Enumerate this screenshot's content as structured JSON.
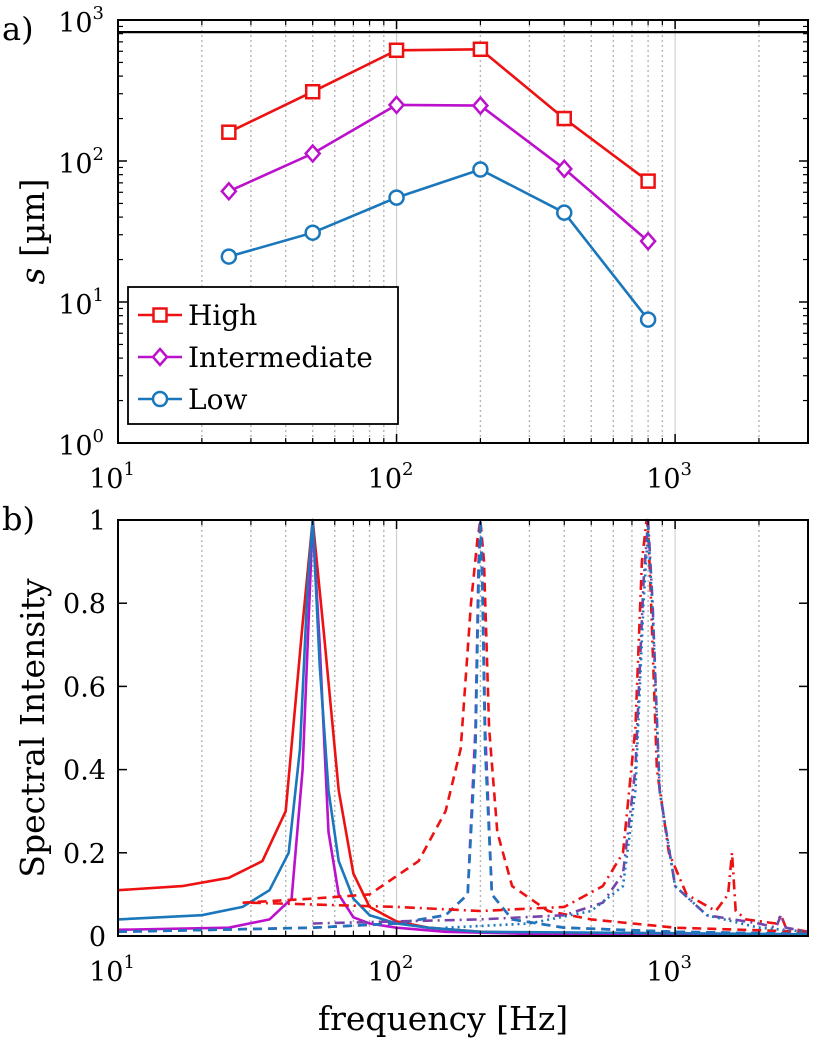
{
  "chart_data": [
    {
      "panel_label": "a)",
      "type": "line",
      "x_scale": "log",
      "y_scale": "log",
      "xlim": [
        10,
        3000
      ],
      "ylim": [
        1,
        1000
      ],
      "ylabel_symbol": "s",
      "ylabel_unit": " [µm]",
      "xticks": [
        10,
        100,
        1000
      ],
      "yticks": [
        1,
        10,
        100,
        1000
      ],
      "grid": "vertical dotted minor lines",
      "reference_line_y": 820,
      "legend_position": "lower-left",
      "series": [
        {
          "name": "High",
          "color": "#ee1111",
          "marker": "square",
          "x": [
            25,
            50,
            100,
            200,
            400,
            800
          ],
          "y": [
            160,
            310,
            610,
            620,
            200,
            72
          ]
        },
        {
          "name": "Intermediate",
          "color": "#bb11cc",
          "marker": "diamond",
          "x": [
            25,
            50,
            100,
            200,
            400,
            800
          ],
          "y": [
            61,
            113,
            250,
            247,
            88,
            27
          ]
        },
        {
          "name": "Low",
          "color": "#1a77bb",
          "marker": "circle",
          "x": [
            25,
            50,
            100,
            200,
            400,
            800
          ],
          "y": [
            21,
            31,
            55,
            87,
            43,
            7.5
          ]
        }
      ]
    },
    {
      "panel_label": "b)",
      "type": "line",
      "x_scale": "log",
      "xlim": [
        10,
        3000
      ],
      "ylim": [
        0,
        1
      ],
      "xlabel": "frequency [Hz]",
      "ylabel": "Spectral Intensity",
      "yticks": [
        0,
        0.2,
        0.4,
        0.6,
        0.8,
        1
      ],
      "ytick_labels": [
        "0",
        "0.2",
        "0.4",
        "0.6",
        "0.8",
        "1"
      ],
      "xticks": [
        10,
        100,
        1000
      ],
      "grid": "vertical dotted minor lines",
      "series": [
        {
          "color": "#ee1111",
          "dash": "solid",
          "x": [
            10,
            17,
            25,
            33,
            40,
            46,
            50,
            55,
            62,
            70,
            80,
            100,
            130,
            200,
            400,
            800,
            3000
          ],
          "y": [
            0.11,
            0.12,
            0.14,
            0.18,
            0.3,
            0.75,
            1.0,
            0.72,
            0.35,
            0.15,
            0.07,
            0.035,
            0.02,
            0.01,
            0.005,
            0.005,
            0.003
          ]
        },
        {
          "color": "#bb11cc",
          "dash": "solid",
          "x": [
            10,
            25,
            35,
            42,
            46,
            50,
            53,
            57,
            62,
            70,
            80,
            100,
            150,
            300,
            3000
          ],
          "y": [
            0.015,
            0.02,
            0.04,
            0.09,
            0.4,
            1.0,
            0.7,
            0.25,
            0.1,
            0.045,
            0.03,
            0.02,
            0.01,
            0.005,
            0.003
          ]
        },
        {
          "color": "#1a77bb",
          "dash": "solid",
          "x": [
            10,
            20,
            28,
            35,
            41,
            45,
            48,
            50,
            53,
            57,
            62,
            70,
            80,
            100,
            130,
            200,
            3000
          ],
          "y": [
            0.04,
            0.05,
            0.07,
            0.11,
            0.2,
            0.45,
            0.85,
            1.0,
            0.65,
            0.35,
            0.18,
            0.09,
            0.05,
            0.03,
            0.02,
            0.01,
            0.004
          ]
        },
        {
          "color": "#ee1111",
          "dash": "dashed",
          "x": [
            28,
            50,
            80,
            120,
            150,
            170,
            185,
            195,
            200,
            206,
            215,
            230,
            260,
            350,
            500,
            1000,
            3000
          ],
          "y": [
            0.08,
            0.09,
            0.1,
            0.18,
            0.3,
            0.45,
            0.8,
            0.95,
            1.0,
            0.9,
            0.5,
            0.25,
            0.12,
            0.06,
            0.04,
            0.02,
            0.01
          ]
        },
        {
          "color": "#bb11cc",
          "dash": "dashed",
          "x": [
            10,
            50,
            100,
            150,
            180,
            192,
            197,
            200,
            203,
            208,
            220,
            260,
            400,
            1000,
            3000
          ],
          "y": [
            0.01,
            0.02,
            0.03,
            0.05,
            0.1,
            0.5,
            0.9,
            1.0,
            0.9,
            0.5,
            0.1,
            0.04,
            0.02,
            0.01,
            0.005
          ]
        },
        {
          "color": "#1a77bb",
          "dash": "dashed",
          "x": [
            10,
            50,
            100,
            150,
            180,
            192,
            197,
            200,
            203,
            208,
            220,
            260,
            400,
            1000,
            3000
          ],
          "y": [
            0.01,
            0.02,
            0.03,
            0.05,
            0.1,
            0.45,
            0.85,
            1.0,
            0.85,
            0.45,
            0.1,
            0.04,
            0.02,
            0.01,
            0.005
          ]
        },
        {
          "color": "#ee1111",
          "dash": "dashdot",
          "x": [
            30,
            100,
            200,
            400,
            550,
            650,
            720,
            760,
            790,
            800,
            820,
            860,
            950,
            1100,
            1400,
            1550,
            1600,
            1650,
            1800,
            2300,
            2400,
            2500,
            3000
          ],
          "y": [
            0.08,
            0.07,
            0.06,
            0.07,
            0.12,
            0.2,
            0.5,
            0.9,
            1.0,
            0.98,
            0.8,
            0.4,
            0.2,
            0.1,
            0.06,
            0.1,
            0.2,
            0.06,
            0.04,
            0.03,
            0.05,
            0.02,
            0.01
          ]
        },
        {
          "color": "#7744aa",
          "dash": "dashdot",
          "x": [
            50,
            100,
            200,
            400,
            550,
            650,
            720,
            770,
            800,
            830,
            880,
            1000,
            1300,
            2000,
            2300,
            2400,
            2500,
            3000
          ],
          "y": [
            0.03,
            0.035,
            0.04,
            0.05,
            0.08,
            0.15,
            0.4,
            0.85,
            1.0,
            0.8,
            0.35,
            0.12,
            0.05,
            0.03,
            0.02,
            0.05,
            0.02,
            0.01
          ]
        },
        {
          "color": "#1a77bb",
          "dash": "dotted",
          "x": [
            150,
            300,
            500,
            650,
            720,
            770,
            800,
            830,
            880,
            1000,
            1300,
            2000,
            3000
          ],
          "y": [
            0.02,
            0.03,
            0.06,
            0.12,
            0.35,
            0.8,
            0.98,
            0.78,
            0.35,
            0.12,
            0.05,
            0.02,
            0.01
          ]
        }
      ]
    }
  ]
}
